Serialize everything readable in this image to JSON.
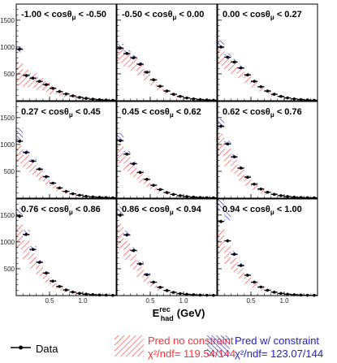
{
  "chart_data": {
    "type": "bar",
    "colors": {
      "data": "#000000",
      "pred_no_constraint": "#ff3333",
      "pred_w_constraint": "#2222cc"
    },
    "x_axis": {
      "label_main": "E",
      "label_sup": "rec",
      "label_sub": "had",
      "label_unit": "(GeV)",
      "ticks": [
        "0.5",
        "1.0"
      ],
      "tick_values": [
        0.5,
        1.0
      ],
      "xlim": [
        0.0,
        1.5
      ]
    },
    "y_axis": {
      "ticks": [
        "500",
        "1000",
        "1500"
      ],
      "tick_values": [
        500,
        1000,
        1500
      ],
      "ylim": [
        0,
        1800
      ]
    },
    "bins": [
      0.0,
      0.1,
      0.2,
      0.3,
      0.4,
      0.5,
      0.6,
      0.7,
      0.8,
      0.9,
      1.0,
      1.1,
      1.2,
      1.3,
      1.4,
      1.5
    ],
    "panels": [
      {
        "title": "-1.00 < cosθμ < -0.50",
        "data": [
          960,
          470,
          420,
          360,
          300,
          230,
          170,
          125,
          90,
          62,
          44,
          30,
          20,
          13,
          8
        ],
        "pred_no_constraint": [
          [
            280,
            720
          ],
          [
            250,
            580
          ],
          [
            240,
            520
          ],
          [
            200,
            440
          ],
          [
            160,
            360
          ],
          [
            120,
            280
          ],
          [
            90,
            210
          ],
          [
            65,
            150
          ],
          [
            45,
            110
          ],
          [
            30,
            75
          ],
          [
            20,
            52
          ],
          [
            14,
            36
          ],
          [
            9,
            24
          ],
          [
            6,
            16
          ],
          [
            4,
            10
          ]
        ],
        "pred_w_constraint": [
          [
            900,
            1000
          ],
          [
            440,
            500
          ],
          [
            395,
            445
          ],
          [
            340,
            385
          ],
          [
            280,
            320
          ],
          [
            215,
            250
          ],
          [
            158,
            185
          ],
          [
            116,
            136
          ],
          [
            83,
            98
          ],
          [
            57,
            68
          ],
          [
            40,
            48
          ],
          [
            27,
            33
          ],
          [
            18,
            22
          ],
          [
            12,
            15
          ],
          [
            7,
            9
          ]
        ]
      },
      {
        "title": "-0.50 < cosθμ < 0.00",
        "data": [
          980,
          880,
          800,
          680,
          530,
          390,
          270,
          180,
          120,
          80,
          52,
          34,
          22,
          14,
          9
        ],
        "pred_no_constraint": [
          [
            700,
            1000
          ],
          [
            620,
            880
          ],
          [
            560,
            800
          ],
          [
            470,
            680
          ],
          [
            370,
            540
          ],
          [
            270,
            400
          ],
          [
            190,
            280
          ],
          [
            125,
            190
          ],
          [
            85,
            125
          ],
          [
            55,
            85
          ],
          [
            36,
            56
          ],
          [
            24,
            37
          ],
          [
            15,
            24
          ],
          [
            10,
            16
          ],
          [
            6,
            10
          ]
        ],
        "pred_w_constraint": [
          [
            940,
            1060
          ],
          [
            850,
            940
          ],
          [
            770,
            850
          ],
          [
            650,
            720
          ],
          [
            505,
            565
          ],
          [
            370,
            415
          ],
          [
            255,
            290
          ],
          [
            170,
            195
          ],
          [
            112,
            130
          ],
          [
            75,
            87
          ],
          [
            48,
            57
          ],
          [
            31,
            37
          ],
          [
            20,
            24
          ],
          [
            13,
            16
          ],
          [
            8,
            10
          ]
        ]
      },
      {
        "title": "0.00 < cosθμ < 0.27",
        "data": [
          1000,
          810,
          720,
          610,
          480,
          360,
          260,
          180,
          120,
          80,
          52,
          34,
          22,
          14,
          9
        ],
        "pred_no_constraint": [
          [
            650,
            950
          ],
          [
            560,
            800
          ],
          [
            500,
            720
          ],
          [
            420,
            620
          ],
          [
            330,
            490
          ],
          [
            245,
            370
          ],
          [
            175,
            265
          ],
          [
            120,
            185
          ],
          [
            80,
            125
          ],
          [
            52,
            85
          ],
          [
            34,
            56
          ],
          [
            22,
            37
          ],
          [
            14,
            24
          ],
          [
            9,
            16
          ],
          [
            6,
            10
          ]
        ],
        "pred_w_constraint": [
          [
            970,
            1130
          ],
          [
            790,
            880
          ],
          [
            700,
            780
          ],
          [
            590,
            660
          ],
          [
            465,
            520
          ],
          [
            350,
            390
          ],
          [
            250,
            282
          ],
          [
            173,
            197
          ],
          [
            115,
            132
          ],
          [
            76,
            88
          ],
          [
            49,
            57
          ],
          [
            32,
            37
          ],
          [
            21,
            24
          ],
          [
            13,
            16
          ],
          [
            8,
            10
          ]
        ]
      },
      {
        "title": "0.27 < cosθμ < 0.45",
        "data": [
          1060,
          850,
          690,
          540,
          400,
          280,
          190,
          125,
          82,
          55,
          36,
          24,
          16,
          11,
          7
        ],
        "pred_no_constraint": [
          [
            650,
            980
          ],
          [
            540,
            810
          ],
          [
            440,
            660
          ],
          [
            340,
            520
          ],
          [
            250,
            390
          ],
          [
            175,
            280
          ],
          [
            120,
            190
          ],
          [
            78,
            125
          ],
          [
            52,
            82
          ],
          [
            34,
            55
          ],
          [
            22,
            36
          ],
          [
            15,
            24
          ],
          [
            10,
            16
          ],
          [
            7,
            11
          ],
          [
            4,
            7
          ]
        ],
        "pred_w_constraint": [
          [
            1080,
            1310
          ],
          [
            820,
            900
          ],
          [
            665,
            730
          ],
          [
            520,
            575
          ],
          [
            385,
            425
          ],
          [
            270,
            300
          ],
          [
            182,
            203
          ],
          [
            120,
            134
          ],
          [
            79,
            88
          ],
          [
            53,
            59
          ],
          [
            34,
            39
          ],
          [
            23,
            26
          ],
          [
            15,
            17
          ],
          [
            10,
            12
          ],
          [
            6,
            8
          ]
        ]
      },
      {
        "title": "0.45 < cosθμ < 0.62",
        "data": [
          1070,
          820,
          640,
          480,
          350,
          240,
          160,
          105,
          70,
          46,
          30,
          20,
          13,
          9,
          6
        ],
        "pred_no_constraint": [
          [
            650,
            1000
          ],
          [
            500,
            780
          ],
          [
            390,
            610
          ],
          [
            290,
            460
          ],
          [
            210,
            340
          ],
          [
            145,
            235
          ],
          [
            96,
            158
          ],
          [
            62,
            104
          ],
          [
            41,
            69
          ],
          [
            27,
            45
          ],
          [
            18,
            30
          ],
          [
            12,
            20
          ],
          [
            8,
            13
          ],
          [
            5,
            9
          ],
          [
            3,
            6
          ]
        ],
        "pred_w_constraint": [
          [
            1080,
            1220
          ],
          [
            800,
            880
          ],
          [
            620,
            685
          ],
          [
            465,
            515
          ],
          [
            340,
            375
          ],
          [
            232,
            258
          ],
          [
            155,
            172
          ],
          [
            101,
            113
          ],
          [
            67,
            75
          ],
          [
            44,
            49
          ],
          [
            29,
            32
          ],
          [
            19,
            21
          ],
          [
            12,
            14
          ],
          [
            8,
            10
          ],
          [
            5,
            7
          ]
        ]
      },
      {
        "title": "0.62 < cosθμ < 0.76",
        "data": [
          1340,
          1010,
          770,
          560,
          390,
          260,
          170,
          110,
          72,
          47,
          31,
          20,
          13,
          9,
          6
        ],
        "pred_no_constraint": [
          [
            780,
            1200
          ],
          [
            600,
            920
          ],
          [
            460,
            720
          ],
          [
            330,
            530
          ],
          [
            230,
            370
          ],
          [
            155,
            250
          ],
          [
            100,
            165
          ],
          [
            64,
            108
          ],
          [
            42,
            71
          ],
          [
            27,
            46
          ],
          [
            18,
            30
          ],
          [
            12,
            20
          ],
          [
            8,
            13
          ],
          [
            5,
            9
          ],
          [
            3,
            6
          ]
        ],
        "pred_w_constraint": [
          [
            1320,
            1480
          ],
          [
            980,
            1070
          ],
          [
            745,
            820
          ],
          [
            540,
            600
          ],
          [
            375,
            418
          ],
          [
            250,
            280
          ],
          [
            164,
            184
          ],
          [
            106,
            119
          ],
          [
            69,
            78
          ],
          [
            45,
            51
          ],
          [
            30,
            33
          ],
          [
            19,
            22
          ],
          [
            12,
            14
          ],
          [
            8,
            10
          ],
          [
            5,
            7
          ]
        ]
      },
      {
        "title": "0.76 < cosθμ < 0.86",
        "data": [
          1480,
          1140,
          860,
          620,
          420,
          270,
          170,
          105,
          66,
          42,
          27,
          18,
          12,
          8,
          5
        ],
        "pred_no_constraint": [
          [
            860,
            1320
          ],
          [
            670,
            1030
          ],
          [
            500,
            790
          ],
          [
            360,
            570
          ],
          [
            245,
            390
          ],
          [
            158,
            252
          ],
          [
            100,
            160
          ],
          [
            62,
            100
          ],
          [
            39,
            63
          ],
          [
            25,
            41
          ],
          [
            16,
            26
          ],
          [
            11,
            17
          ],
          [
            7,
            11
          ],
          [
            5,
            8
          ],
          [
            3,
            5
          ]
        ],
        "pred_w_constraint": [
          [
            1450,
            1640
          ],
          [
            1110,
            1220
          ],
          [
            835,
            920
          ],
          [
            600,
            665
          ],
          [
            405,
            450
          ],
          [
            262,
            292
          ],
          [
            164,
            184
          ],
          [
            101,
            114
          ],
          [
            64,
            72
          ],
          [
            40,
            45
          ],
          [
            26,
            29
          ],
          [
            17,
            19
          ],
          [
            11,
            13
          ],
          [
            7,
            9
          ],
          [
            5,
            6
          ]
        ]
      },
      {
        "title": "0.86 < cosθμ < 0.94",
        "data": [
          1500,
          1130,
          840,
          590,
          390,
          250,
          155,
          95,
          60,
          38,
          24,
          16,
          10,
          7,
          5
        ],
        "pred_no_constraint": [
          [
            870,
            1340
          ],
          [
            660,
            1020
          ],
          [
            490,
            770
          ],
          [
            340,
            540
          ],
          [
            225,
            360
          ],
          [
            145,
            232
          ],
          [
            90,
            146
          ],
          [
            56,
            91
          ],
          [
            35,
            57
          ],
          [
            22,
            36
          ],
          [
            14,
            23
          ],
          [
            9,
            15
          ],
          [
            6,
            10
          ],
          [
            4,
            7
          ],
          [
            3,
            5
          ]
        ],
        "pred_w_constraint": [
          [
            1470,
            1660
          ],
          [
            1100,
            1210
          ],
          [
            815,
            900
          ],
          [
            570,
            635
          ],
          [
            377,
            420
          ],
          [
            242,
            270
          ],
          [
            150,
            168
          ],
          [
            92,
            103
          ],
          [
            58,
            65
          ],
          [
            37,
            41
          ],
          [
            23,
            26
          ],
          [
            15,
            17
          ],
          [
            10,
            11
          ],
          [
            7,
            8
          ],
          [
            4,
            6
          ]
        ]
      },
      {
        "title": "0.94 < cosθμ < 1.00",
        "data": [
          1380,
          1020,
          770,
          560,
          380,
          250,
          160,
          100,
          64,
          40,
          26,
          17,
          11,
          7,
          5
        ],
        "pred_no_constraint": [
          [
            800,
            1230
          ],
          [
            590,
            920
          ],
          [
            440,
            700
          ],
          [
            320,
            510
          ],
          [
            220,
            350
          ],
          [
            145,
            232
          ],
          [
            92,
            148
          ],
          [
            58,
            93
          ],
          [
            37,
            59
          ],
          [
            23,
            37
          ],
          [
            15,
            24
          ],
          [
            10,
            16
          ],
          [
            6,
            10
          ],
          [
            4,
            7
          ],
          [
            3,
            5
          ]
        ],
        "pred_w_constraint": [
          [
            1580,
            1800
          ],
          [
            1400,
            1560
          ],
          [
            750,
            830
          ],
          [
            545,
            605
          ],
          [
            370,
            410
          ],
          [
            243,
            270
          ],
          [
            155,
            173
          ],
          [
            97,
            108
          ],
          [
            62,
            69
          ],
          [
            39,
            43
          ],
          [
            25,
            28
          ],
          [
            16,
            18
          ],
          [
            11,
            12
          ],
          [
            7,
            8
          ],
          [
            5,
            6
          ]
        ]
      }
    ],
    "legend": {
      "data_label": "Data",
      "pred_no_constraint_label": "Pred no constraint",
      "pred_no_constraint_chi2": "χ²/ndf= 119.54/144",
      "pred_w_constraint_label": "Pred w/ constraint",
      "pred_w_constraint_chi2": "χ²/ndf= 123.07/144"
    }
  }
}
